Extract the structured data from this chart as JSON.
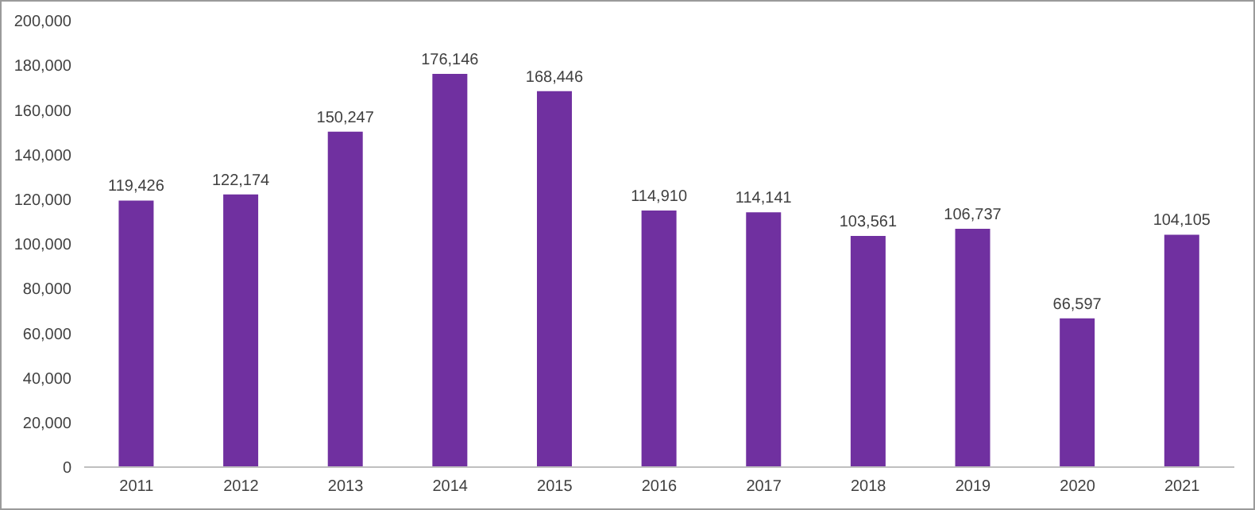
{
  "chart_data": {
    "type": "bar",
    "categories": [
      "2011",
      "2012",
      "2013",
      "2014",
      "2015",
      "2016",
      "2017",
      "2018",
      "2019",
      "2020",
      "2021"
    ],
    "series": [
      {
        "color": "#7030a0",
        "values": [
          119426,
          122174,
          150247,
          176146,
          168446,
          114910,
          114141,
          103561,
          106737,
          66597,
          104105
        ],
        "value_labels": [
          "119,426",
          "122,174",
          "150,247",
          "176,146",
          "168,446",
          "114,910",
          "114,141",
          "103,561",
          "106,737",
          "66,597",
          "104,105"
        ]
      }
    ],
    "ylim": [
      0,
      200000
    ],
    "yticks": [
      {
        "value": 0,
        "label": "0"
      },
      {
        "value": 20000,
        "label": "20,000"
      },
      {
        "value": 40000,
        "label": "40,000"
      },
      {
        "value": 60000,
        "label": "60,000"
      },
      {
        "value": 80000,
        "label": "80,000"
      },
      {
        "value": 100000,
        "label": "100,000"
      },
      {
        "value": 120000,
        "label": "120,000"
      },
      {
        "value": 140000,
        "label": "140,000"
      },
      {
        "value": 160000,
        "label": "160,000"
      },
      {
        "value": 180000,
        "label": "180,000"
      },
      {
        "value": 200000,
        "label": "200,000"
      }
    ],
    "grid": false,
    "legend": false
  }
}
